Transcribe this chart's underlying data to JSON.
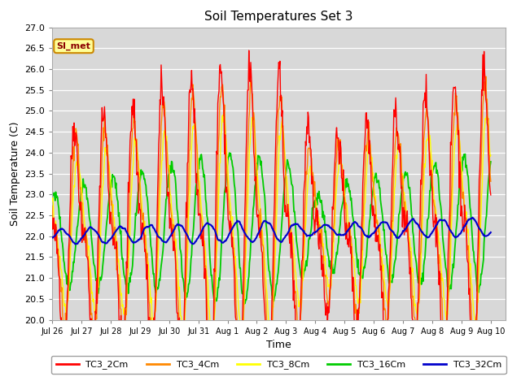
{
  "title": "Soil Temperatures Set 3",
  "xlabel": "Time",
  "ylabel": "Soil Temperature (C)",
  "ylim": [
    20.0,
    27.0
  ],
  "yticks": [
    20.0,
    20.5,
    21.0,
    21.5,
    22.0,
    22.5,
    23.0,
    23.5,
    24.0,
    24.5,
    25.0,
    25.5,
    26.0,
    26.5,
    27.0
  ],
  "xtick_labels": [
    "Jul 26",
    "Jul 27",
    "Jul 28",
    "Jul 29",
    "Jul 30",
    "Jul 31",
    "Aug 1",
    "Aug 2",
    "Aug 3",
    "Aug 4",
    "Aug 5",
    "Aug 6",
    "Aug 7",
    "Aug 8",
    "Aug 9",
    "Aug 10"
  ],
  "line_colors": {
    "TC3_2Cm": "#ff0000",
    "TC3_4Cm": "#ff8800",
    "TC3_8Cm": "#ffff00",
    "TC3_16Cm": "#00cc00",
    "TC3_32Cm": "#0000cc"
  },
  "fig_bg_color": "#ffffff",
  "plot_bg_color": "#d8d8d8",
  "legend_label": "SI_met",
  "legend_bg": "#ffff99",
  "legend_border": "#cc8800",
  "grid_color": "#ffffff"
}
